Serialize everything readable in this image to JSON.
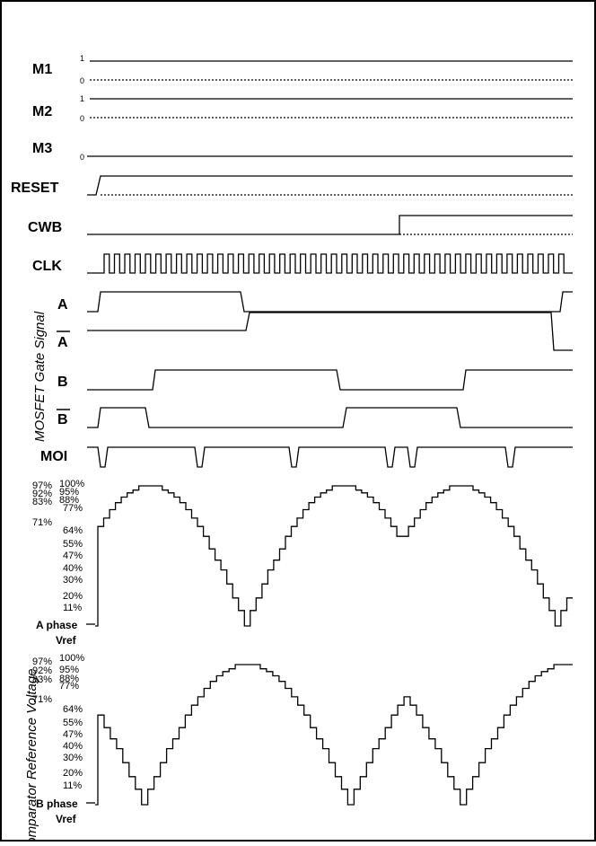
{
  "signals": [
    {
      "key": "m1",
      "label": "M1",
      "levels": [
        "1",
        "0"
      ]
    },
    {
      "key": "m2",
      "label": "M2",
      "levels": [
        "1",
        "0"
      ]
    },
    {
      "key": "m3",
      "label": "M3",
      "levels": [
        "0"
      ]
    },
    {
      "key": "reset",
      "label": "RESET"
    },
    {
      "key": "cwb",
      "label": "CWB"
    },
    {
      "key": "clk",
      "label": "CLK"
    },
    {
      "key": "a",
      "label": "A"
    },
    {
      "key": "abar",
      "label": "A",
      "overline": true
    },
    {
      "key": "b",
      "label": "B"
    },
    {
      "key": "bbar",
      "label": "B",
      "overline": true
    },
    {
      "key": "moi",
      "label": "MOI"
    }
  ],
  "group_label": "MOSFET Gate Signal",
  "vref_group_label": "Comparator Reference Voltage",
  "percent_levels": [
    "100%",
    "97%",
    "95%",
    "92%",
    "88%",
    "83%",
    "77%",
    "71%",
    "64%",
    "55%",
    "47%",
    "40%",
    "30%",
    "20%",
    "11%"
  ],
  "a_phase": {
    "line1": "A phase",
    "line2": "Vref"
  },
  "b_phase": {
    "line1": "B phase",
    "line2": "Vref"
  },
  "waveforms": {
    "clk_periods": 45,
    "a_vref_steps": [
      71,
      77,
      83,
      88,
      92,
      95,
      97,
      100,
      100,
      100,
      100,
      97,
      95,
      92,
      88,
      83,
      77,
      71,
      64,
      55,
      47,
      40,
      30,
      20,
      11,
      0,
      11,
      20,
      30,
      40,
      47,
      55,
      64,
      71,
      77,
      83,
      88,
      92,
      95,
      97,
      100,
      100,
      100,
      100,
      97,
      95,
      92,
      88,
      83,
      77,
      71,
      64,
      64,
      71,
      77,
      83,
      88,
      92,
      95,
      97,
      100,
      100,
      100,
      100,
      97,
      95,
      92,
      88,
      83,
      77,
      71,
      64,
      55,
      47,
      40,
      30,
      20,
      11,
      0,
      11,
      20
    ],
    "b_vref_steps": [
      64,
      55,
      47,
      40,
      30,
      20,
      11,
      0,
      11,
      20,
      30,
      40,
      47,
      55,
      64,
      71,
      77,
      83,
      88,
      92,
      95,
      97,
      100,
      100,
      100,
      100,
      97,
      95,
      92,
      88,
      83,
      77,
      71,
      64,
      55,
      47,
      40,
      30,
      20,
      11,
      0,
      11,
      20,
      30,
      40,
      47,
      55,
      64,
      71,
      77,
      71,
      64,
      55,
      47,
      40,
      30,
      20,
      11,
      0,
      11,
      20,
      30,
      40,
      47,
      55,
      64,
      71,
      77,
      83,
      88,
      92,
      95,
      97,
      100,
      100,
      100
    ]
  }
}
